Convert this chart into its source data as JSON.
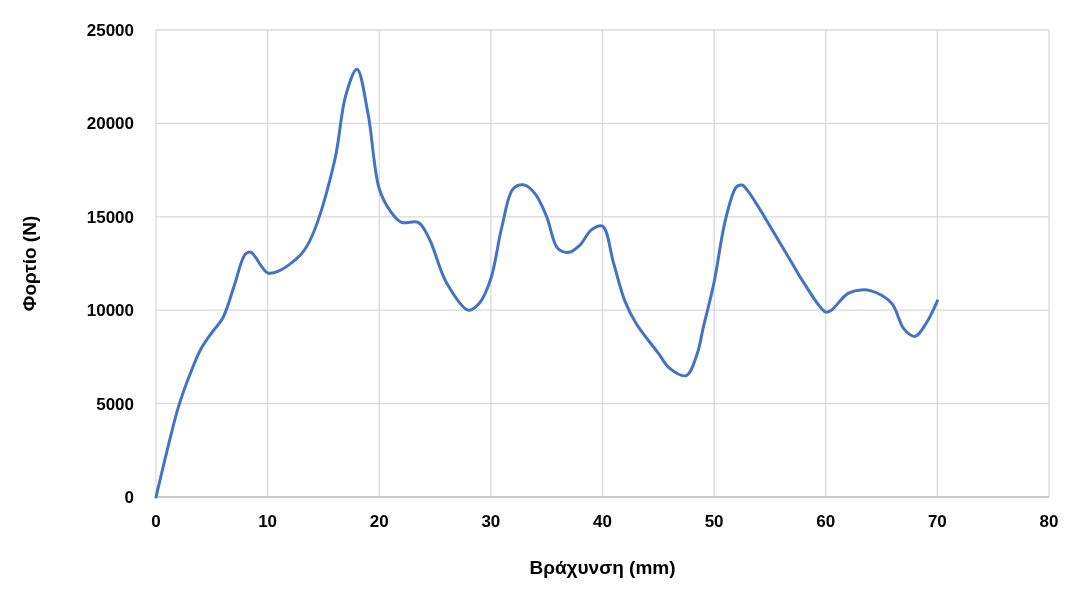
{
  "chart_data": {
    "type": "line",
    "xlabel": "Βράχυνση (mm)",
    "ylabel": "Φορτίο (N)",
    "xlim": [
      0,
      80
    ],
    "xticks": [
      0,
      10,
      20,
      30,
      40,
      50,
      60,
      70,
      80
    ],
    "ylim": [
      0,
      25000
    ],
    "yticks": [
      0,
      5000,
      10000,
      15000,
      20000,
      25000
    ],
    "grid": true,
    "marker": "none",
    "line_style": "solid",
    "series": [
      {
        "color": "#4472c4",
        "x": [
          0,
          1,
          2,
          3,
          4,
          5,
          6,
          7,
          8,
          8.5,
          10,
          11,
          13,
          14,
          16,
          17,
          18,
          19,
          20,
          21,
          22,
          23.5,
          24.5,
          26,
          28,
          29,
          30,
          31,
          32,
          33,
          34,
          35,
          36,
          37,
          38,
          39,
          40,
          41,
          42,
          43,
          45,
          46,
          47.5,
          48.5,
          49,
          50,
          51,
          52,
          52.5,
          53,
          54,
          55,
          57,
          58,
          60,
          60.5,
          62,
          63.4,
          64,
          65,
          66,
          67,
          68,
          69,
          70
        ],
        "values": [
          0,
          2500,
          4800,
          6500,
          7900,
          8800,
          9600,
          11300,
          13000,
          13100,
          12000,
          12100,
          13000,
          14000,
          18000,
          21500,
          22900,
          20500,
          16500,
          15300,
          14700,
          14700,
          13800,
          11500,
          10000,
          10400,
          11700,
          14500,
          16500,
          16700,
          16200,
          15000,
          13300,
          13100,
          13500,
          14300,
          14500,
          12500,
          10500,
          9300,
          7700,
          6900,
          6500,
          7700,
          9000,
          11500,
          14800,
          16600,
          16700,
          16400,
          15500,
          14500,
          12500,
          11500,
          9900,
          10000,
          10900,
          11100,
          11050,
          10800,
          10300,
          9000,
          8600,
          9300,
          10500
        ]
      }
    ]
  }
}
